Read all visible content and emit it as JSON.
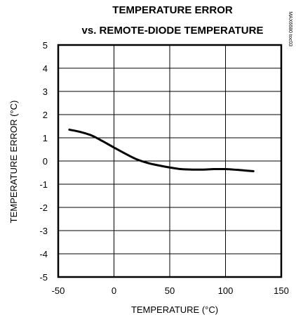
{
  "chart_data": {
    "type": "line",
    "title_lines": [
      "TEMPERATURE ERROR",
      "vs. REMOTE-DIODE TEMPERATURE"
    ],
    "xlabel": "TEMPERATURE (°C)",
    "ylabel": "TEMPERATURE ERROR (°C)",
    "xlim": [
      -50,
      150
    ],
    "ylim": [
      -5,
      5
    ],
    "xticks": [
      -50,
      0,
      50,
      100,
      150
    ],
    "yticks": [
      -5,
      -4,
      -3,
      -2,
      -1,
      0,
      1,
      2,
      3,
      4,
      5
    ],
    "grid": true,
    "watermark": "MAX6680 toc03",
    "series": [
      {
        "x": [
          -40,
          -30,
          -20,
          -10,
          0,
          10,
          20,
          30,
          40,
          50,
          60,
          70,
          80,
          90,
          100,
          110,
          120,
          125
        ],
        "y": [
          1.35,
          1.25,
          1.1,
          0.85,
          0.58,
          0.32,
          0.08,
          -0.08,
          -0.19,
          -0.28,
          -0.35,
          -0.37,
          -0.37,
          -0.35,
          -0.35,
          -0.38,
          -0.42,
          -0.44
        ]
      }
    ]
  }
}
